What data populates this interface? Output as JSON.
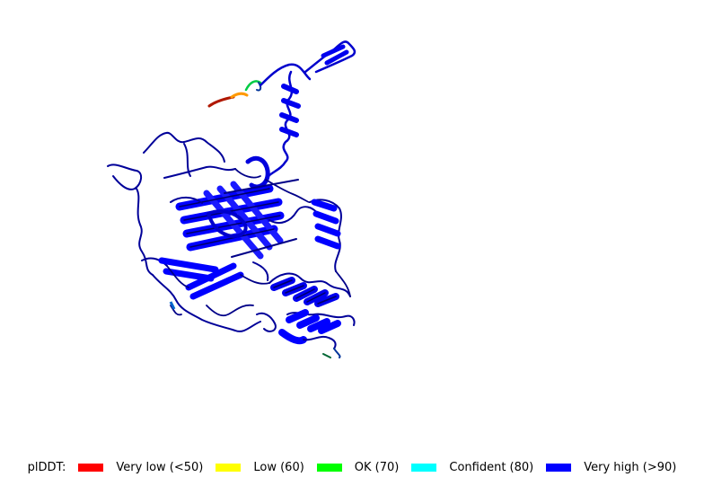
{
  "legend": {
    "title": "plDDT:",
    "entries": [
      {
        "label": "Very low (<50)",
        "color": "#ff0000"
      },
      {
        "label": "Low (60)",
        "color": "#ffff00"
      },
      {
        "label": "OK (70)",
        "color": "#00ff00"
      },
      {
        "label": "Confident (80)",
        "color": "#00ffff"
      },
      {
        "label": "Very high (>90)",
        "color": "#0000ff"
      }
    ]
  },
  "colors": {
    "very_high": "#0000ff",
    "very_high_dark": "#000066",
    "low_tail": "#cc2200",
    "mid_tail": "#ff9900",
    "ok_tail": "#00cc44"
  }
}
